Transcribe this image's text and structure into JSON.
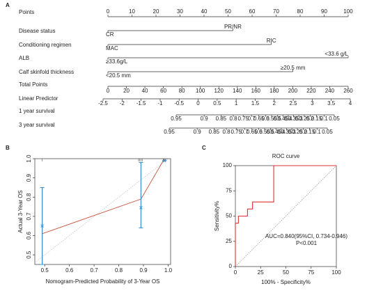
{
  "chart_data": [
    {
      "type": "nomogram",
      "panel_label": "A",
      "rows": [
        {
          "label": "Points",
          "kind": "axis",
          "xlim": [
            0,
            100
          ],
          "xticks": [
            0,
            10,
            20,
            30,
            40,
            50,
            60,
            70,
            80,
            90,
            100
          ]
        },
        {
          "label": "Disease status",
          "kind": "variable",
          "levels": [
            {
              "label": "CR",
              "value": 0
            },
            {
              "label": "PR/NR",
              "value": 52
            }
          ]
        },
        {
          "label": "Conditioning regimen",
          "kind": "variable",
          "levels": [
            {
              "label": "MAC",
              "value": 0
            },
            {
              "label": "RIC",
              "value": 68
            }
          ]
        },
        {
          "label": "ALB",
          "kind": "variable",
          "levels": [
            {
              "label": "≥33.6g/L",
              "value": 0
            },
            {
              "label": "<33.6 g/L",
              "value": 100
            }
          ]
        },
        {
          "label": "Calf skinfold thickness",
          "kind": "variable",
          "levels": [
            {
              "label": "<20.5 mm",
              "value": 0
            },
            {
              "label": "≥20.5 mm",
              "value": 77
            }
          ]
        },
        {
          "label": "Total Points",
          "kind": "axis",
          "xlim": [
            0,
            260
          ],
          "xticks": [
            0,
            20,
            40,
            60,
            80,
            100,
            120,
            140,
            160,
            180,
            200,
            220,
            240,
            260
          ]
        },
        {
          "label": "Linear Predictor",
          "kind": "axis",
          "xlim": [
            -2.5,
            4
          ],
          "xticks": [
            -2.5,
            -2,
            -1.5,
            -1,
            -0.5,
            0,
            0.5,
            1,
            1.5,
            2,
            2.5,
            3,
            3.5,
            4
          ]
        },
        {
          "label": "1 year survival",
          "kind": "axis",
          "scale": "cloglog",
          "xlim": [
            0.95,
            0.05
          ],
          "xticks": [
            0.95,
            0.9,
            0.85,
            0.8,
            0.75,
            0.7,
            0.65,
            0.6,
            0.55,
            0.5,
            0.45,
            0.4,
            0.35,
            0.3,
            0.25,
            0.2,
            0.15,
            0.1,
            0.05
          ]
        },
        {
          "label": "3 year survival",
          "kind": "axis",
          "scale": "cloglog",
          "xlim": [
            0.95,
            0.05
          ],
          "xticks": [
            0.95,
            0.9,
            0.85,
            0.8,
            0.75,
            0.7,
            0.65,
            0.6,
            0.55,
            0.5,
            0.45,
            0.4,
            0.35,
            0.3,
            0.25,
            0.2,
            0.15,
            0.1,
            0.05
          ]
        }
      ]
    },
    {
      "type": "calibration",
      "panel_label": "B",
      "xlabel": "Nomogram-Predicted Probability of 3-Year OS",
      "ylabel": "Actual 3-Year OS",
      "xlim": [
        0.46,
        1.01
      ],
      "ylim": [
        0.45,
        1.0
      ],
      "xticks": [
        0.5,
        0.6,
        0.7,
        0.8,
        0.9,
        {
          "value": 1,
          "label": "1.0"
        }
      ],
      "yticks": [
        0.5,
        0.6,
        0.7,
        0.8,
        0.9,
        {
          "value": 1,
          "label": "1.0"
        }
      ],
      "reference_line": true,
      "reference_color": "#bbbbbb",
      "rug": [
        0.49,
        0.88,
        0.885,
        0.89,
        0.895,
        0.98,
        0.985,
        0.99
      ],
      "series": [
        {
          "type": "line",
          "color": "#c8553d",
          "x": [
            0.49,
            0.89,
            0.985
          ],
          "values": [
            0.61,
            0.79,
            1.0
          ]
        },
        {
          "type": "errorbar",
          "color": "#3a8fd0",
          "x": [
            0.49,
            0.89,
            0.985
          ],
          "values": [
            0.65,
            0.745,
            0.99
          ],
          "lower": [
            0.45,
            0.64,
            0.99
          ],
          "upper": [
            0.85,
            0.98,
            0.99
          ]
        }
      ]
    },
    {
      "type": "roc",
      "panel_label": "C",
      "title": "ROC curve",
      "xlabel": "100% - Specificity%",
      "ylabel": "Sensitivity%",
      "xlim": [
        0,
        100
      ],
      "ylim": [
        0,
        100
      ],
      "xticks": [
        0,
        25,
        50,
        75,
        100
      ],
      "yticks": [
        0,
        25,
        50,
        75,
        100
      ],
      "reference_line": true,
      "reference_color": "#888888",
      "series": [
        {
          "color": "#e03030",
          "x": [
            0,
            0,
            3,
            3,
            12,
            12,
            17,
            17,
            38,
            38,
            100
          ],
          "values": [
            0,
            43,
            43,
            50,
            50,
            57,
            57,
            64,
            64,
            100,
            100
          ]
        }
      ],
      "annotations": [
        "AUC=0.840(95%CI, 0.734-0.946)",
        "P<0.001"
      ]
    }
  ]
}
